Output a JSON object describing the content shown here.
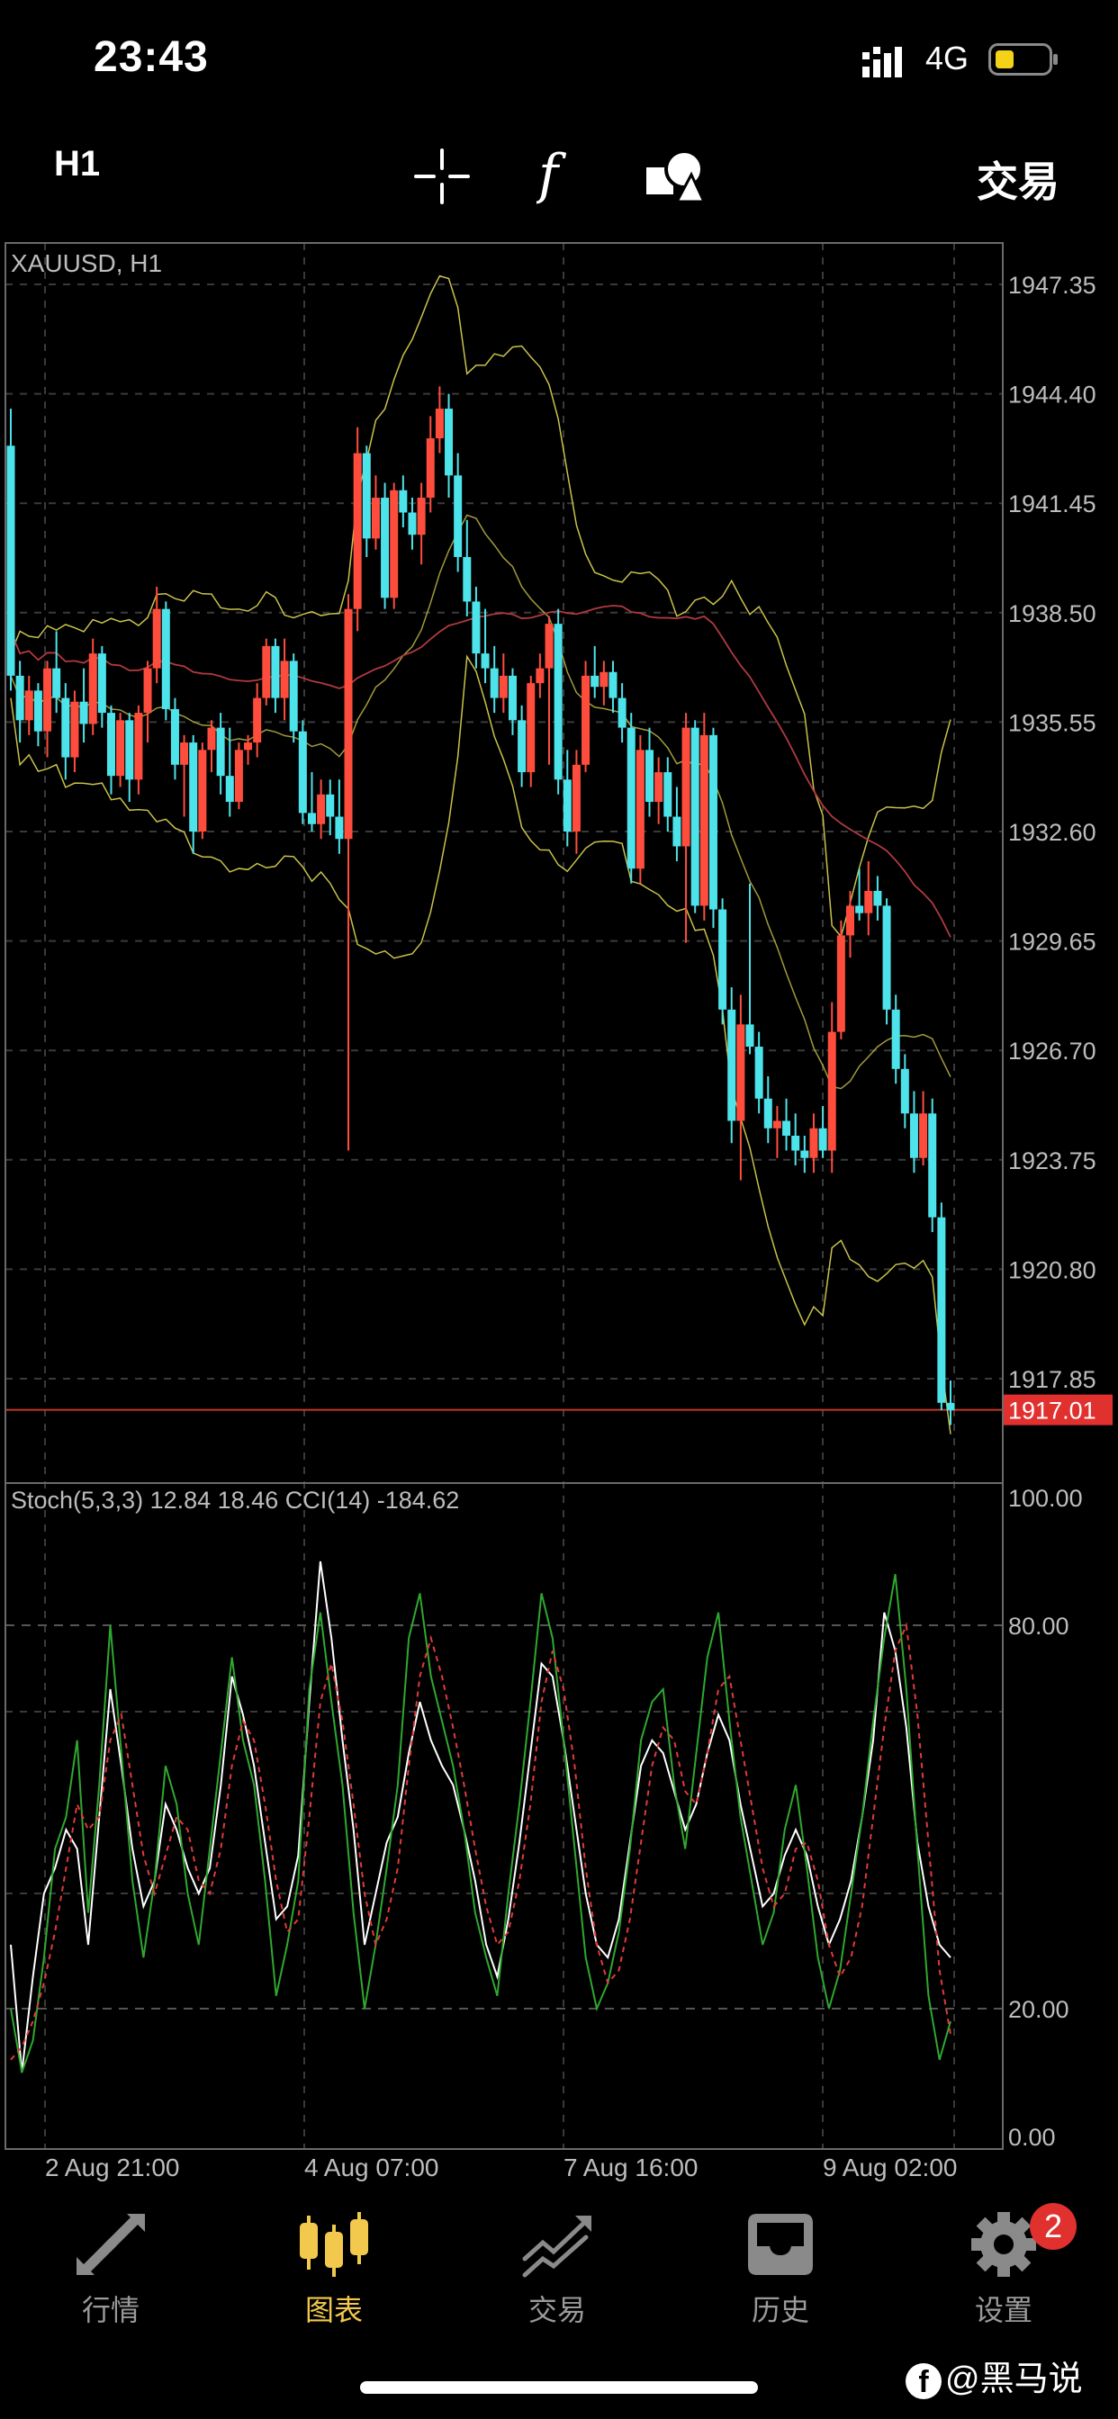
{
  "status_bar": {
    "time": "23:43",
    "network": "4G"
  },
  "toolbar": {
    "period": "H1",
    "trade_label": "交易"
  },
  "chart_data": {
    "type": "candlestick",
    "title": "XAUUSD, H1",
    "price_axis": [
      "1947.35",
      "1944.40",
      "1941.45",
      "1938.50",
      "1935.55",
      "1932.60",
      "1929.65",
      "1926.70",
      "1923.75",
      "1920.80",
      "1917.85"
    ],
    "current_price": "1917.01",
    "indicator_label": "Stoch(5,3,3) 12.84 18.46 CCI(14) -184.62",
    "indicator_axis": [
      "100.00",
      "80.00",
      "20.00",
      "0.00"
    ],
    "time_axis": [
      "2 Aug 21:00",
      "4 Aug 07:00",
      "7 Aug 16:00",
      "9 Aug 02:00"
    ],
    "colors": {
      "bull": "#ff4d3d",
      "bear": "#4de3ea",
      "stoch_main": "#2fa82f",
      "stoch_signal": "#e03a3a",
      "cci": "#ffffff",
      "bands": "#c9c24a",
      "ma": "#b03a40"
    },
    "candles": [
      [
        1943.0,
        1944.0,
        1936.4,
        1936.8
      ],
      [
        1936.8,
        1937.2,
        1935.0,
        1935.6
      ],
      [
        1935.6,
        1936.8,
        1935.2,
        1936.4
      ],
      [
        1936.4,
        1936.6,
        1934.9,
        1935.3
      ],
      [
        1935.3,
        1937.2,
        1934.6,
        1937.0
      ],
      [
        1937.0,
        1938.0,
        1935.8,
        1936.2
      ],
      [
        1936.2,
        1936.6,
        1934.0,
        1934.6
      ],
      [
        1934.6,
        1936.4,
        1934.2,
        1936.1
      ],
      [
        1936.1,
        1937.0,
        1935.0,
        1935.5
      ],
      [
        1935.5,
        1937.8,
        1935.2,
        1937.4
      ],
      [
        1937.4,
        1937.6,
        1935.4,
        1935.8
      ],
      [
        1935.8,
        1936.0,
        1933.6,
        1934.1
      ],
      [
        1934.1,
        1935.8,
        1933.8,
        1935.6
      ],
      [
        1935.6,
        1935.8,
        1933.4,
        1934.0
      ],
      [
        1934.0,
        1936.0,
        1933.6,
        1935.8
      ],
      [
        1935.8,
        1937.2,
        1935.0,
        1937.0
      ],
      [
        1937.0,
        1939.2,
        1936.6,
        1938.6
      ],
      [
        1938.6,
        1938.8,
        1935.6,
        1935.9
      ],
      [
        1935.9,
        1936.2,
        1934.0,
        1934.4
      ],
      [
        1934.4,
        1935.2,
        1933.0,
        1935.0
      ],
      [
        1935.0,
        1935.2,
        1932.0,
        1932.6
      ],
      [
        1932.6,
        1935.0,
        1932.4,
        1934.8
      ],
      [
        1934.8,
        1935.6,
        1934.2,
        1935.4
      ],
      [
        1935.4,
        1935.8,
        1933.6,
        1934.1
      ],
      [
        1934.1,
        1935.4,
        1933.0,
        1933.4
      ],
      [
        1933.4,
        1935.0,
        1933.2,
        1934.8
      ],
      [
        1934.8,
        1935.2,
        1934.4,
        1935.0
      ],
      [
        1935.0,
        1936.6,
        1934.6,
        1936.2
      ],
      [
        1936.2,
        1937.8,
        1936.0,
        1937.6
      ],
      [
        1937.6,
        1937.8,
        1935.8,
        1936.2
      ],
      [
        1936.2,
        1937.8,
        1935.6,
        1937.2
      ],
      [
        1937.2,
        1937.4,
        1935.0,
        1935.3
      ],
      [
        1935.3,
        1935.6,
        1932.8,
        1933.1
      ],
      [
        1933.1,
        1934.2,
        1932.6,
        1932.8
      ],
      [
        1932.8,
        1934.0,
        1932.4,
        1933.6
      ],
      [
        1933.6,
        1934.0,
        1932.5,
        1933.0
      ],
      [
        1933.0,
        1934.0,
        1932.0,
        1932.4
      ],
      [
        1932.4,
        1939.0,
        1924.0,
        1938.6
      ],
      [
        1938.6,
        1943.5,
        1938.0,
        1942.8
      ],
      [
        1942.8,
        1943.0,
        1940.0,
        1940.5
      ],
      [
        1940.5,
        1942.2,
        1940.2,
        1941.6
      ],
      [
        1941.6,
        1942.0,
        1938.6,
        1938.9
      ],
      [
        1938.9,
        1942.0,
        1938.6,
        1941.8
      ],
      [
        1941.8,
        1942.2,
        1940.8,
        1941.2
      ],
      [
        1941.2,
        1941.6,
        1940.2,
        1940.6
      ],
      [
        1940.6,
        1942.0,
        1939.8,
        1941.6
      ],
      [
        1941.6,
        1943.8,
        1941.2,
        1943.2
      ],
      [
        1943.2,
        1944.6,
        1942.8,
        1944.0
      ],
      [
        1944.0,
        1944.4,
        1941.6,
        1942.2
      ],
      [
        1942.2,
        1942.8,
        1939.6,
        1940.0
      ],
      [
        1940.0,
        1941.0,
        1938.4,
        1938.8
      ],
      [
        1938.8,
        1939.2,
        1937.0,
        1937.4
      ],
      [
        1937.4,
        1938.6,
        1936.6,
        1937.0
      ],
      [
        1937.0,
        1937.6,
        1935.8,
        1936.2
      ],
      [
        1936.2,
        1937.4,
        1935.8,
        1936.8
      ],
      [
        1936.8,
        1937.0,
        1935.2,
        1935.6
      ],
      [
        1935.6,
        1936.0,
        1933.8,
        1934.2
      ],
      [
        1934.2,
        1936.8,
        1933.8,
        1936.6
      ],
      [
        1936.6,
        1937.4,
        1936.2,
        1937.0
      ],
      [
        1937.0,
        1938.4,
        1934.4,
        1938.2
      ],
      [
        1938.2,
        1938.6,
        1933.6,
        1934.0
      ],
      [
        1934.0,
        1934.8,
        1932.2,
        1932.6
      ],
      [
        1932.6,
        1934.8,
        1932.0,
        1934.4
      ],
      [
        1934.4,
        1937.2,
        1934.2,
        1936.8
      ],
      [
        1936.8,
        1937.6,
        1936.2,
        1936.5
      ],
      [
        1936.5,
        1937.2,
        1936.0,
        1936.9
      ],
      [
        1936.9,
        1937.2,
        1935.8,
        1936.2
      ],
      [
        1936.2,
        1936.6,
        1935.0,
        1935.4
      ],
      [
        1935.4,
        1935.8,
        1931.2,
        1931.6
      ],
      [
        1931.6,
        1935.2,
        1931.2,
        1934.8
      ],
      [
        1934.8,
        1935.4,
        1933.0,
        1933.4
      ],
      [
        1933.4,
        1934.6,
        1932.8,
        1934.2
      ],
      [
        1934.2,
        1934.6,
        1932.6,
        1933.0
      ],
      [
        1933.0,
        1933.8,
        1931.8,
        1932.2
      ],
      [
        1932.2,
        1935.8,
        1929.6,
        1935.4
      ],
      [
        1935.4,
        1935.6,
        1930.4,
        1930.6
      ],
      [
        1930.6,
        1935.8,
        1930.2,
        1935.2
      ],
      [
        1935.2,
        1935.4,
        1930.0,
        1930.5
      ],
      [
        1930.5,
        1930.8,
        1927.4,
        1927.8
      ],
      [
        1927.8,
        1928.4,
        1924.2,
        1924.8
      ],
      [
        1924.8,
        1928.2,
        1923.2,
        1927.4
      ],
      [
        1927.4,
        1931.2,
        1926.6,
        1926.8
      ],
      [
        1926.8,
        1927.2,
        1925.0,
        1925.4
      ],
      [
        1925.4,
        1926.0,
        1924.2,
        1924.6
      ],
      [
        1924.6,
        1925.2,
        1923.8,
        1924.8
      ],
      [
        1924.8,
        1925.4,
        1924.0,
        1924.4
      ],
      [
        1924.4,
        1925.0,
        1923.6,
        1924.0
      ],
      [
        1924.0,
        1924.4,
        1923.4,
        1923.8
      ],
      [
        1923.8,
        1925.0,
        1923.4,
        1924.6
      ],
      [
        1924.6,
        1925.2,
        1923.8,
        1924.0
      ],
      [
        1924.0,
        1928.0,
        1923.4,
        1927.2
      ],
      [
        1927.2,
        1930.2,
        1927.0,
        1929.8
      ],
      [
        1929.8,
        1931.0,
        1929.2,
        1930.6
      ],
      [
        1930.6,
        1931.6,
        1930.2,
        1930.4
      ],
      [
        1930.4,
        1931.8,
        1929.8,
        1931.0
      ],
      [
        1931.0,
        1931.4,
        1930.2,
        1930.6
      ],
      [
        1930.6,
        1930.8,
        1927.4,
        1927.8
      ],
      [
        1927.8,
        1928.2,
        1925.8,
        1926.2
      ],
      [
        1926.2,
        1926.6,
        1924.6,
        1925.0
      ],
      [
        1925.0,
        1925.6,
        1923.4,
        1923.8
      ],
      [
        1923.8,
        1925.6,
        1923.6,
        1925.0
      ],
      [
        1925.0,
        1925.4,
        1921.8,
        1922.2
      ],
      [
        1922.2,
        1922.6,
        1917.0,
        1917.2
      ],
      [
        1917.2,
        1917.8,
        1916.6,
        1917.0
      ]
    ],
    "stoch_main": [
      20,
      10,
      15,
      28,
      45,
      50,
      62,
      35,
      55,
      80,
      60,
      40,
      28,
      40,
      58,
      52,
      38,
      30,
      45,
      60,
      75,
      62,
      55,
      40,
      22,
      30,
      40,
      70,
      82,
      68,
      55,
      35,
      20,
      30,
      42,
      55,
      78,
      85,
      72,
      65,
      58,
      48,
      35,
      28,
      22,
      38,
      52,
      68,
      85,
      78,
      62,
      45,
      28,
      20,
      24,
      32,
      45,
      62,
      68,
      70,
      55,
      45,
      60,
      75,
      82,
      65,
      50,
      40,
      30,
      35,
      48,
      55,
      42,
      28,
      20,
      26,
      38,
      50,
      65,
      78,
      88,
      70,
      45,
      22,
      12,
      18
    ],
    "stoch_signal": [
      12,
      14,
      18,
      24,
      32,
      42,
      52,
      48,
      50,
      62,
      66,
      55,
      44,
      38,
      44,
      50,
      48,
      40,
      38,
      45,
      58,
      65,
      62,
      52,
      40,
      32,
      34,
      50,
      68,
      74,
      65,
      52,
      38,
      30,
      34,
      42,
      58,
      72,
      78,
      72,
      64,
      55,
      45,
      36,
      30,
      32,
      40,
      52,
      68,
      76,
      70,
      58,
      42,
      30,
      24,
      26,
      34,
      46,
      58,
      64,
      62,
      54,
      52,
      60,
      70,
      72,
      62,
      52,
      42,
      36,
      38,
      45,
      46,
      40,
      30,
      25,
      28,
      36,
      50,
      64,
      76,
      80,
      66,
      46,
      26,
      16
    ],
    "cci": [
      30,
      10,
      25,
      38,
      42,
      48,
      45,
      30,
      50,
      70,
      58,
      45,
      36,
      40,
      52,
      48,
      42,
      38,
      42,
      55,
      72,
      66,
      58,
      46,
      34,
      36,
      44,
      68,
      90,
      78,
      62,
      48,
      30,
      38,
      46,
      50,
      60,
      68,
      62,
      58,
      55,
      48,
      40,
      30,
      25,
      34,
      46,
      60,
      74,
      72,
      62,
      50,
      38,
      30,
      28,
      34,
      46,
      58,
      62,
      60,
      54,
      48,
      52,
      60,
      66,
      62,
      52,
      44,
      36,
      38,
      44,
      48,
      44,
      36,
      30,
      34,
      40,
      50,
      62,
      82,
      76,
      64,
      46,
      36,
      30,
      28
    ]
  },
  "tabs": [
    {
      "label": "行情"
    },
    {
      "label": "图表"
    },
    {
      "label": "交易"
    },
    {
      "label": "历史"
    },
    {
      "label": "设置"
    }
  ],
  "badge": "2",
  "watermark": "@黑马说"
}
